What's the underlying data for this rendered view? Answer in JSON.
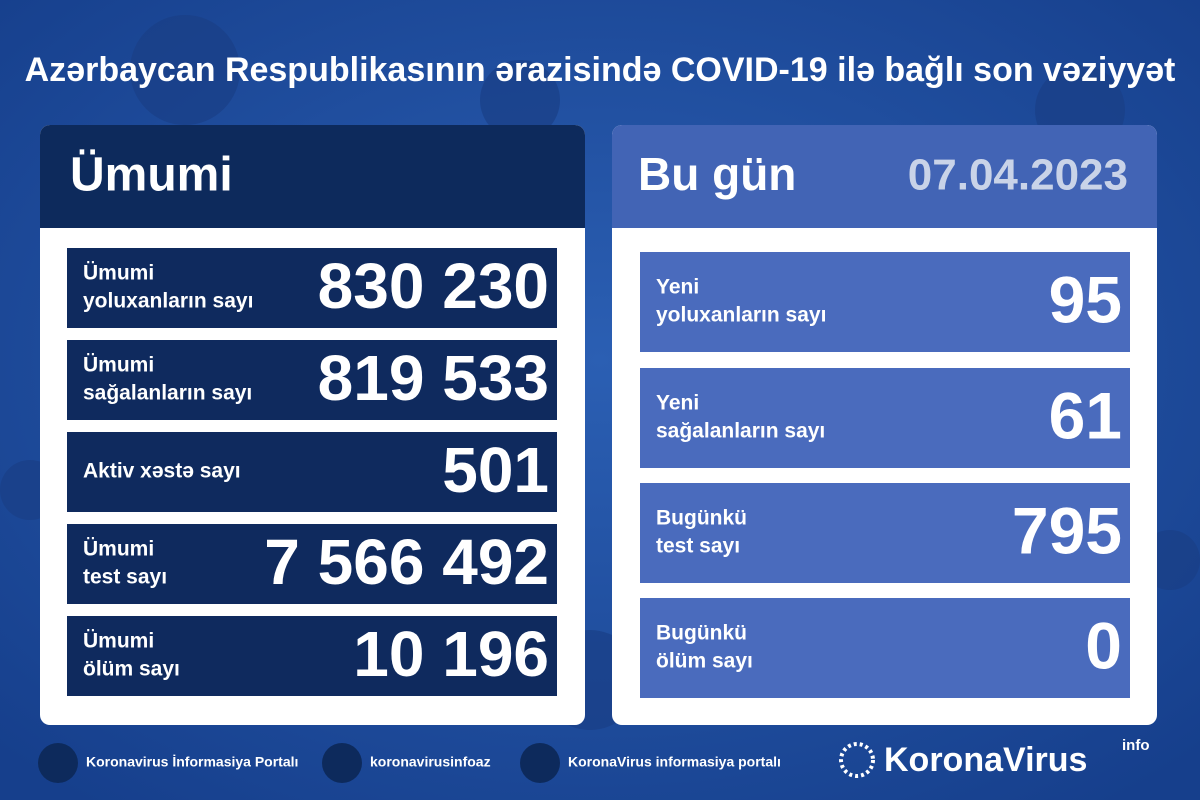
{
  "header": {
    "title": "Azərbaycan Respublikasının ərazisində COVID-19 ilə bağlı son vəziyyət"
  },
  "total": {
    "heading": "Ümumi",
    "rows": [
      {
        "label": [
          "Ümumi",
          "yoluxanların sayı"
        ],
        "value": "830 230"
      },
      {
        "label": [
          "Ümumi",
          "sağalanların sayı"
        ],
        "value": "819 533"
      },
      {
        "label": [
          "Aktiv xəstə sayı"
        ],
        "value": "501"
      },
      {
        "label": [
          "Ümumi",
          "test sayı"
        ],
        "value": "7 566 492"
      },
      {
        "label": [
          "Ümumi",
          "ölüm sayı"
        ],
        "value": "10 196"
      }
    ]
  },
  "today": {
    "heading": "Bu gün",
    "date": "07.04.2023",
    "rows": [
      {
        "label": [
          "Yeni",
          "yoluxanların sayı"
        ],
        "value": "95"
      },
      {
        "label": [
          "Yeni",
          "sağalanların sayı"
        ],
        "value": "61"
      },
      {
        "label": [
          "Bugünkü",
          "test sayı"
        ],
        "value": "795"
      },
      {
        "label": [
          "Bugünkü",
          "ölüm sayı"
        ],
        "value": "0"
      }
    ]
  },
  "footer": {
    "links": [
      "Koronavirus İnformasiya Portalı",
      "koronavirusinfoaz",
      "KoronaVirus informasiya portalı"
    ],
    "logo": "KoronaVirus",
    "logo_sup": "info"
  }
}
